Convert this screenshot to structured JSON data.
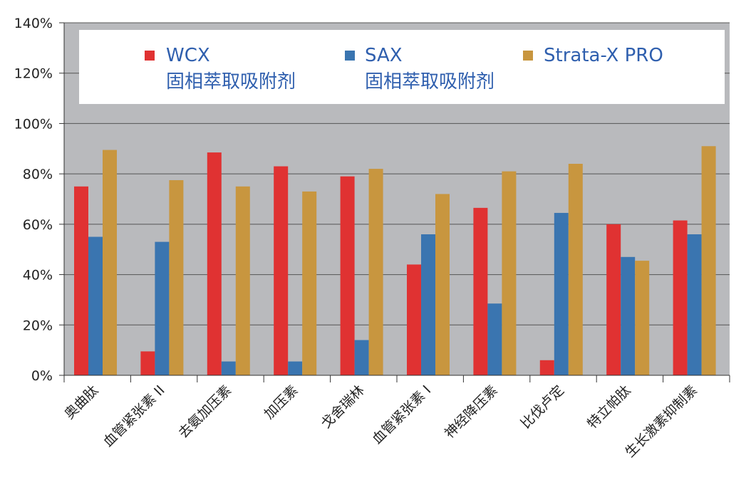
{
  "chart_data": {
    "type": "bar",
    "categories": [
      "奥曲肽",
      "血管紧张素 II",
      "去氨加压素",
      "加压素",
      "戈舍瑞林",
      "血管紧张素 I",
      "神经降压素",
      "比伐卢定",
      "特立帕肽",
      "生长激素抑制素"
    ],
    "series": [
      {
        "name": "WCX",
        "name_line2": "固相萃取吸附剂",
        "color": "#e03232",
        "values": [
          75,
          9.5,
          88.5,
          83,
          79,
          44,
          66.5,
          6,
          60,
          61.5
        ]
      },
      {
        "name": "SAX",
        "name_line2": "固相萃取吸附剂",
        "color": "#3a75b0",
        "values": [
          55,
          53,
          5.5,
          5.5,
          14,
          56,
          28.5,
          64.5,
          47,
          56
        ]
      },
      {
        "name": "Strata-X PRO",
        "name_line2": "",
        "color": "#c8963f",
        "values": [
          89.5,
          77.5,
          75,
          73,
          82,
          72,
          81,
          84,
          45.5,
          91
        ]
      }
    ],
    "ylim": [
      0,
      140
    ],
    "yticks": [
      "0%",
      "20%",
      "40%",
      "60%",
      "80%",
      "100%",
      "120%",
      "140%"
    ],
    "grid": true,
    "legend_position": "top",
    "plot_background": "#b9babd",
    "title": "",
    "xlabel": "",
    "ylabel": ""
  }
}
